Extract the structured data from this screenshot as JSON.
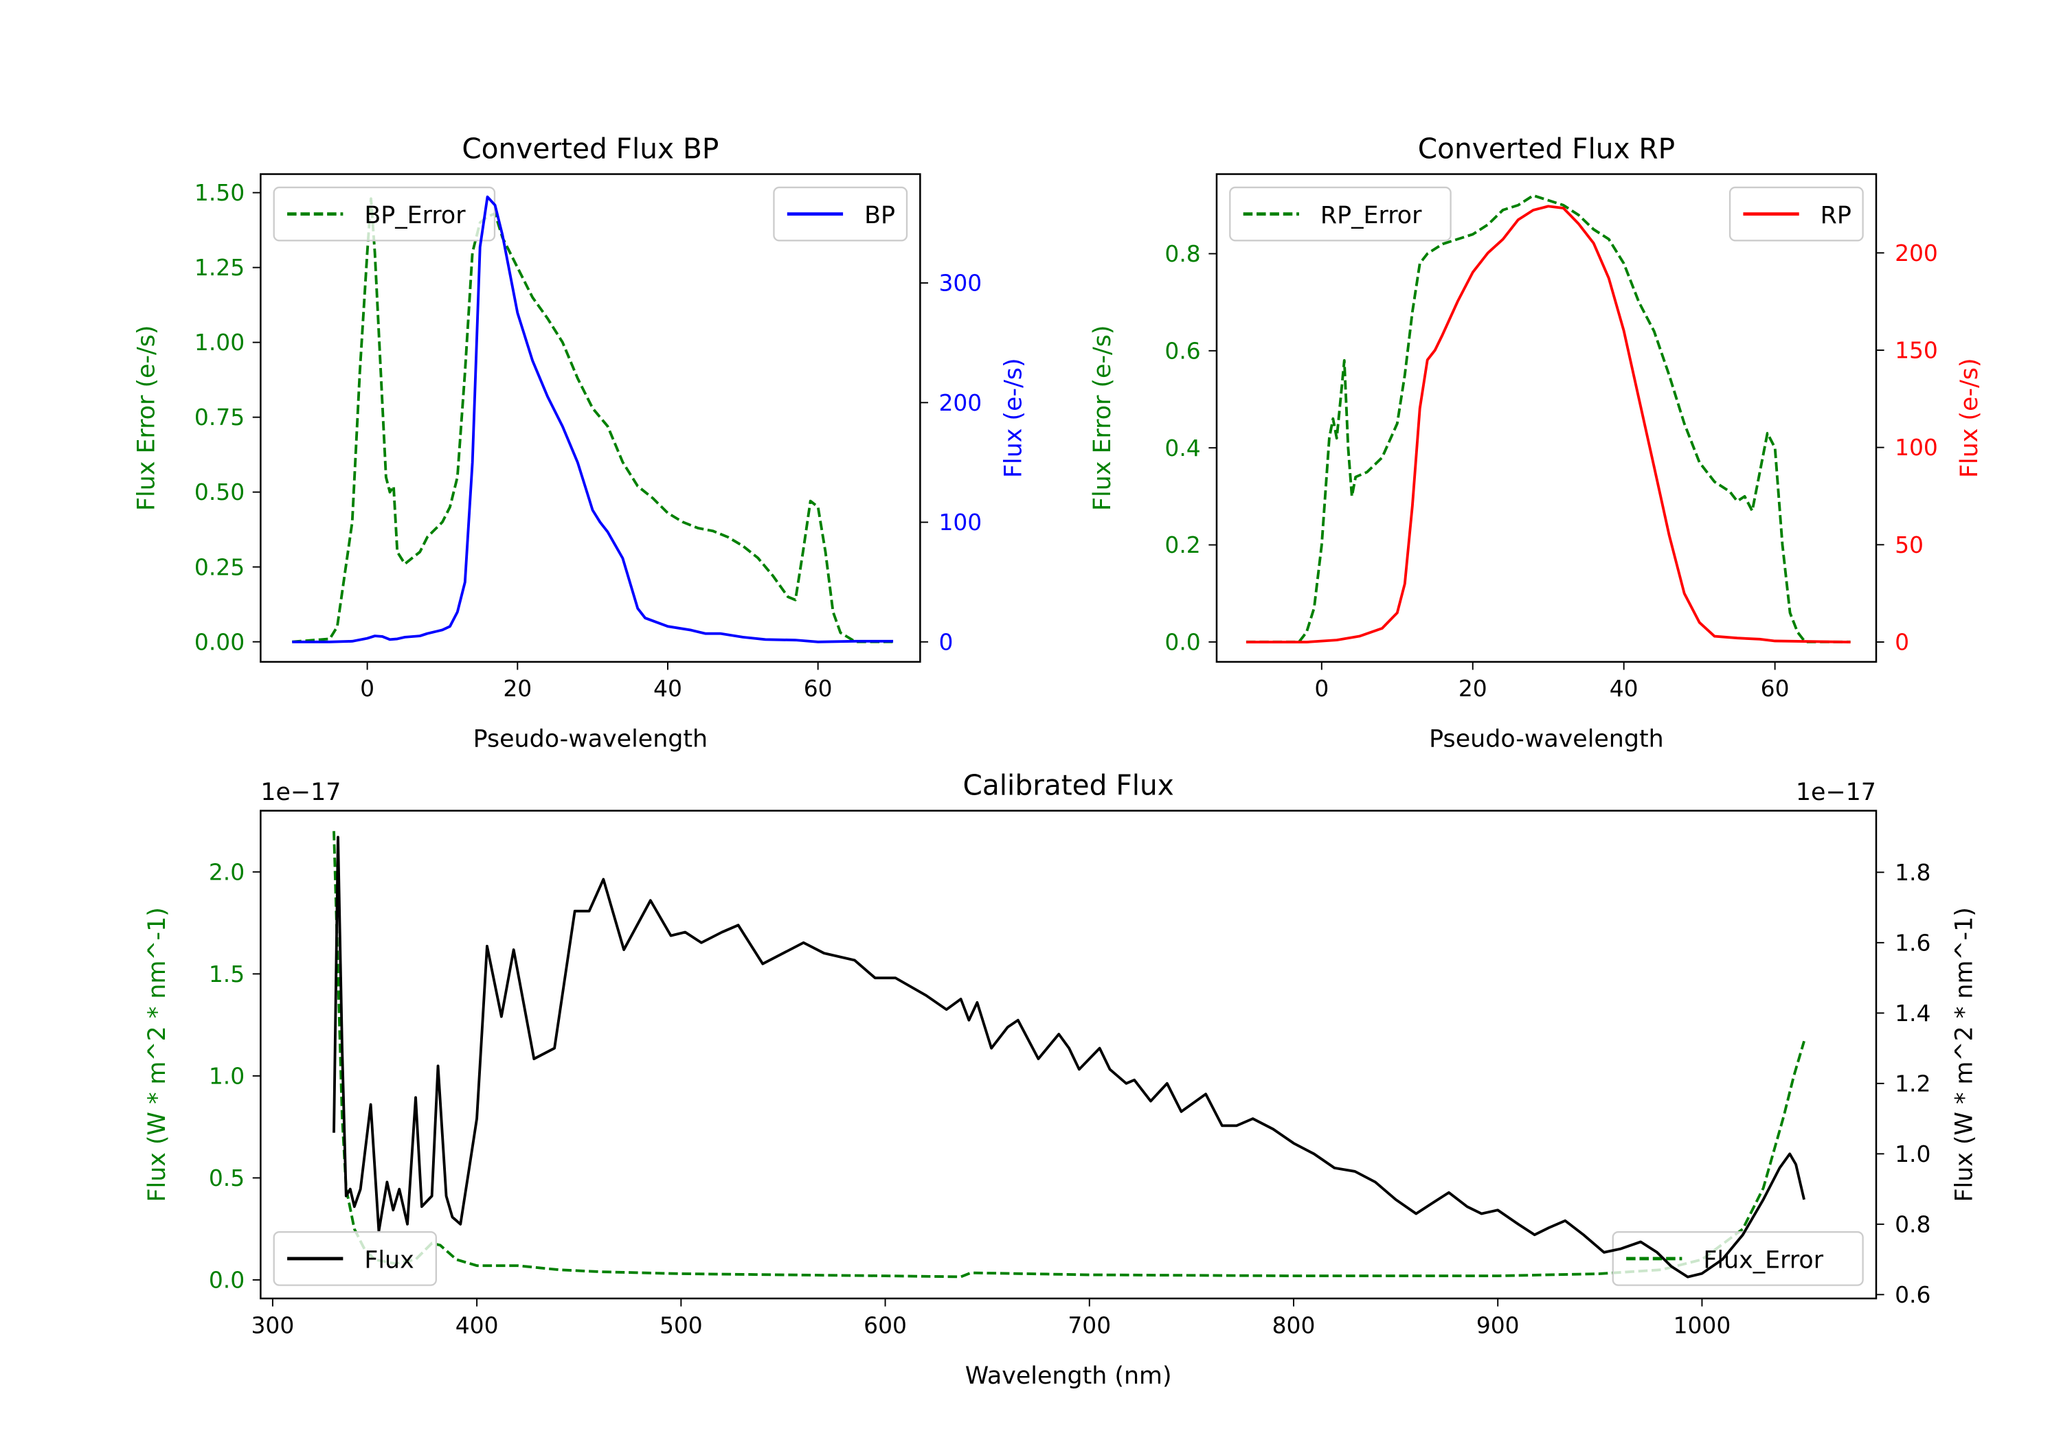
{
  "colors": {
    "green": "#008000",
    "blue": "#0000ff",
    "red": "#ff0000",
    "black": "#000000"
  },
  "chart_data": [
    {
      "type": "line",
      "title": "Converted Flux BP",
      "xlabel": "Pseudo-wavelength",
      "ylabel_left": "Flux Error (e-/s)",
      "ylabel_right": "Flux (e-/s)",
      "xlim": [
        -14.2,
        73.6
      ],
      "ylim_left": [
        -0.067,
        1.562
      ],
      "ylim_right": [
        -16.7,
        391
      ],
      "xticks": [
        0,
        20,
        40,
        60
      ],
      "xtick_labels": [
        "0",
        "20",
        "40",
        "60"
      ],
      "yticks_left": [
        0,
        0.25,
        0.5,
        0.75,
        1.0,
        1.25,
        1.5
      ],
      "ytick_labels_left": [
        "0.00",
        "0.25",
        "0.50",
        "0.75",
        "1.00",
        "1.25",
        "1.50"
      ],
      "yticks_right": [
        0,
        100,
        200,
        300
      ],
      "ytick_labels_right": [
        "0",
        "100",
        "200",
        "300"
      ],
      "left_color": "#008000",
      "right_color": "#0000ff",
      "series": [
        {
          "name": "BP_Error",
          "axis": "left",
          "style": "dashed",
          "color": "#008000",
          "legend": "upper-left",
          "x": [
            -10,
            -5,
            -4,
            -2,
            -1,
            0,
            0.5,
            1,
            2,
            2.5,
            3,
            3.5,
            4,
            5,
            6,
            7,
            8,
            10,
            11,
            12,
            13,
            14,
            15,
            16,
            17,
            18,
            20,
            22,
            24,
            26,
            28,
            30,
            32,
            34,
            36,
            38,
            40,
            42,
            44,
            46,
            48,
            50,
            52,
            54,
            56,
            57,
            58,
            59,
            60,
            61,
            62,
            63,
            65,
            70
          ],
          "y": [
            0,
            0.01,
            0.05,
            0.4,
            0.9,
            1.3,
            1.48,
            1.3,
            0.8,
            0.55,
            0.5,
            0.52,
            0.3,
            0.26,
            0.28,
            0.3,
            0.35,
            0.4,
            0.45,
            0.55,
            0.9,
            1.3,
            1.4,
            1.42,
            1.43,
            1.35,
            1.25,
            1.15,
            1.08,
            1.0,
            0.88,
            0.78,
            0.72,
            0.6,
            0.52,
            0.48,
            0.43,
            0.4,
            0.38,
            0.37,
            0.35,
            0.32,
            0.28,
            0.22,
            0.15,
            0.14,
            0.3,
            0.47,
            0.45,
            0.3,
            0.1,
            0.03,
            0,
            0
          ]
        },
        {
          "name": "BP",
          "axis": "right",
          "style": "solid",
          "color": "#0000ff",
          "legend": "upper-right",
          "x": [
            -10,
            -5,
            -2,
            0,
            1,
            2,
            3,
            4,
            5,
            7,
            8,
            10,
            11,
            12,
            13,
            14,
            15,
            16,
            17,
            18,
            20,
            22,
            24,
            26,
            28,
            30,
            31,
            32,
            34,
            36,
            37,
            40,
            43,
            45,
            47,
            50,
            53,
            57,
            60,
            65,
            70
          ],
          "y": [
            0,
            0,
            0.5,
            3,
            5,
            4.5,
            2,
            2.5,
            4,
            5,
            7,
            10,
            13,
            25,
            50,
            150,
            330,
            372,
            365,
            340,
            275,
            235,
            205,
            180,
            150,
            110,
            100,
            92,
            70,
            28,
            20,
            13,
            10,
            7,
            7,
            4,
            2,
            1.5,
            0,
            0.5,
            0.5
          ]
        }
      ]
    },
    {
      "type": "line",
      "title": "Converted Flux RP",
      "xlabel": "Pseudo-wavelength",
      "ylabel_left": "Flux Error (e-/s)",
      "ylabel_right": "Flux (e-/s)",
      "xlim": [
        -13.9,
        73.4
      ],
      "ylim_left": [
        -0.041,
        0.964
      ],
      "ylim_right": [
        -10.2,
        240.5
      ],
      "xticks": [
        0,
        20,
        40,
        60
      ],
      "xtick_labels": [
        "0",
        "20",
        "40",
        "60"
      ],
      "yticks_left": [
        0,
        0.2,
        0.4,
        0.6,
        0.8
      ],
      "ytick_labels_left": [
        "0.0",
        "0.2",
        "0.4",
        "0.6",
        "0.8"
      ],
      "yticks_right": [
        0,
        50,
        100,
        150,
        200
      ],
      "ytick_labels_right": [
        "0",
        "50",
        "100",
        "150",
        "200"
      ],
      "left_color": "#008000",
      "right_color": "#ff0000",
      "series": [
        {
          "name": "RP_Error",
          "axis": "left",
          "style": "dashed",
          "color": "#008000",
          "legend": "upper-left",
          "x": [
            -10,
            -3,
            -2,
            -1,
            0,
            1,
            1.5,
            2,
            2.5,
            3,
            3.5,
            4,
            4.5,
            6,
            8,
            10,
            11,
            12,
            13,
            14,
            16,
            20,
            22,
            24,
            26,
            28,
            30,
            32,
            34,
            36,
            38,
            40,
            42,
            44,
            46,
            48,
            50,
            52,
            54,
            55,
            56,
            57,
            58,
            59,
            60,
            61,
            62,
            63,
            64,
            70
          ],
          "y": [
            0,
            0,
            0.02,
            0.07,
            0.2,
            0.42,
            0.46,
            0.42,
            0.5,
            0.58,
            0.4,
            0.3,
            0.34,
            0.35,
            0.38,
            0.45,
            0.55,
            0.68,
            0.78,
            0.8,
            0.82,
            0.84,
            0.86,
            0.89,
            0.9,
            0.92,
            0.91,
            0.9,
            0.88,
            0.85,
            0.83,
            0.78,
            0.7,
            0.64,
            0.55,
            0.45,
            0.37,
            0.33,
            0.31,
            0.29,
            0.3,
            0.27,
            0.35,
            0.43,
            0.4,
            0.2,
            0.06,
            0.02,
            0,
            0
          ]
        },
        {
          "name": "RP",
          "axis": "right",
          "style": "solid",
          "color": "#ff0000",
          "legend": "upper-right",
          "x": [
            -10,
            -2,
            2,
            5,
            8,
            10,
            11,
            12,
            13,
            14,
            15,
            16,
            18,
            20,
            22,
            24,
            26,
            28,
            30,
            32,
            34,
            36,
            38,
            40,
            42,
            44,
            46,
            48,
            50,
            52,
            55,
            58,
            60,
            70
          ],
          "y": [
            0,
            0,
            1,
            3,
            7,
            15,
            30,
            70,
            120,
            145,
            150,
            158,
            175,
            190,
            200,
            207,
            217,
            222,
            224,
            223,
            215,
            205,
            187,
            160,
            125,
            90,
            55,
            25,
            10,
            3,
            2,
            1.5,
            0.5,
            0
          ]
        }
      ]
    },
    {
      "type": "line",
      "title": "Calibrated Flux",
      "xlabel": "Wavelength (nm)",
      "ylabel_left": "Flux (W * m^2 * nm^-1)",
      "ylabel_right": "Flux (W * m^2 * nm^-1)",
      "offset_left": "1e−17",
      "offset_right": "1e−17",
      "xlim": [
        294.1,
        1085.3
      ],
      "ylim_left": [
        -0.091,
        2.3
      ],
      "ylim_right": [
        0.589,
        1.975
      ],
      "xticks": [
        300,
        400,
        500,
        600,
        700,
        800,
        900,
        1000
      ],
      "xtick_labels": [
        "300",
        "400",
        "500",
        "600",
        "700",
        "800",
        "900",
        "1000"
      ],
      "yticks_left": [
        0,
        0.5,
        1.0,
        1.5,
        2.0
      ],
      "ytick_labels_left": [
        "0.0",
        "0.5",
        "1.0",
        "1.5",
        "2.0"
      ],
      "yticks_right": [
        0.6,
        0.8,
        1.0,
        1.2,
        1.4,
        1.6,
        1.8
      ],
      "ytick_labels_right": [
        "0.6",
        "0.8",
        "1.0",
        "1.2",
        "1.4",
        "1.6",
        "1.8"
      ],
      "left_color": "#008000",
      "right_color": "#000000",
      "series": [
        {
          "name": "Flux_Error",
          "axis": "left",
          "style": "dashed",
          "color": "#008000",
          "legend": "lower-right",
          "x": [
            330,
            332,
            334,
            336,
            340,
            345,
            350,
            360,
            370,
            378,
            382,
            390,
            400,
            420,
            440,
            460,
            500,
            600,
            637,
            642,
            700,
            800,
            900,
            950,
            980,
            1000,
            1020,
            1030,
            1040,
            1045,
            1050
          ],
          "y": [
            2.2,
            1.5,
            0.8,
            0.45,
            0.25,
            0.15,
            0.1,
            0.08,
            0.1,
            0.18,
            0.17,
            0.1,
            0.07,
            0.07,
            0.05,
            0.04,
            0.03,
            0.02,
            0.015,
            0.035,
            0.025,
            0.02,
            0.02,
            0.03,
            0.05,
            0.1,
            0.25,
            0.45,
            0.8,
            1.0,
            1.17
          ]
        },
        {
          "name": "Flux",
          "axis": "right",
          "style": "solid",
          "color": "#000000",
          "legend": "lower-left",
          "x": [
            330,
            332,
            334,
            336,
            338,
            340,
            343,
            348,
            352,
            356,
            359,
            362,
            366,
            370,
            373,
            378,
            381,
            385,
            388,
            392,
            396,
            400,
            405,
            412,
            418,
            428,
            438,
            448,
            455,
            462,
            472,
            485,
            495,
            502,
            510,
            520,
            528,
            540,
            560,
            570,
            585,
            595,
            605,
            620,
            630,
            637,
            641,
            645,
            652,
            660,
            665,
            675,
            685,
            690,
            695,
            705,
            710,
            718,
            722,
            730,
            738,
            745,
            757,
            765,
            772,
            780,
            790,
            800,
            810,
            820,
            830,
            840,
            850,
            860,
            868,
            876,
            885,
            892,
            900,
            910,
            918,
            925,
            933,
            942,
            952,
            960,
            970,
            978,
            985,
            993,
            1000,
            1010,
            1020,
            1030,
            1038,
            1043,
            1046,
            1050
          ],
          "y": [
            1.06,
            1.9,
            1.3,
            0.88,
            0.9,
            0.85,
            0.9,
            1.14,
            0.78,
            0.92,
            0.84,
            0.9,
            0.8,
            1.16,
            0.85,
            0.88,
            1.25,
            0.88,
            0.82,
            0.8,
            0.95,
            1.1,
            1.59,
            1.39,
            1.58,
            1.27,
            1.3,
            1.69,
            1.69,
            1.78,
            1.58,
            1.72,
            1.62,
            1.63,
            1.6,
            1.63,
            1.65,
            1.54,
            1.6,
            1.57,
            1.55,
            1.5,
            1.5,
            1.45,
            1.41,
            1.44,
            1.38,
            1.43,
            1.3,
            1.36,
            1.38,
            1.27,
            1.34,
            1.3,
            1.24,
            1.3,
            1.24,
            1.2,
            1.21,
            1.15,
            1.2,
            1.12,
            1.17,
            1.08,
            1.08,
            1.1,
            1.07,
            1.03,
            1.0,
            0.96,
            0.95,
            0.92,
            0.87,
            0.83,
            0.86,
            0.89,
            0.85,
            0.83,
            0.84,
            0.8,
            0.77,
            0.79,
            0.81,
            0.77,
            0.72,
            0.73,
            0.75,
            0.72,
            0.68,
            0.65,
            0.66,
            0.7,
            0.77,
            0.87,
            0.96,
            1.0,
            0.97,
            0.87
          ]
        }
      ]
    }
  ]
}
